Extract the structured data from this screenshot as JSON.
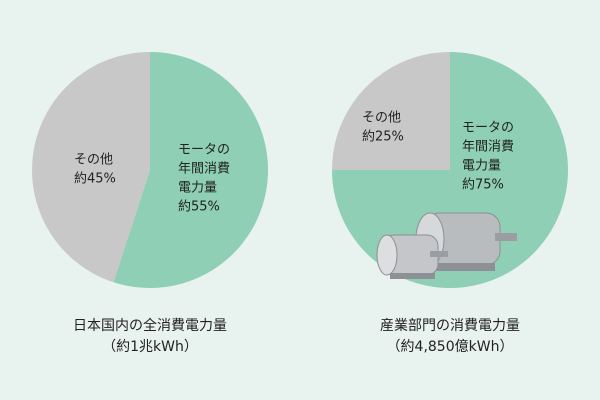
{
  "chart_data": [
    {
      "type": "pie",
      "title": "日本国内の全消費電力量",
      "subtitle": "（約1兆kWh）",
      "categories": [
        [
          "モータの",
          "年間消費",
          "電力量"
        ],
        [
          "その他"
        ]
      ],
      "values": [
        55,
        45
      ],
      "value_labels": [
        "約55%",
        "約45%"
      ],
      "colors": [
        "#8ecfb5",
        "#c9c8c9"
      ]
    },
    {
      "type": "pie",
      "title": "産業部門の消費電力量",
      "subtitle": "（約4,850億kWh）",
      "categories": [
        [
          "モータの",
          "年間消費",
          "電力量"
        ],
        [
          "その他"
        ]
      ],
      "values": [
        75,
        25
      ],
      "value_labels": [
        "約75%",
        "約25%"
      ],
      "colors": [
        "#8ecfb5",
        "#c9c8c9"
      ]
    }
  ]
}
